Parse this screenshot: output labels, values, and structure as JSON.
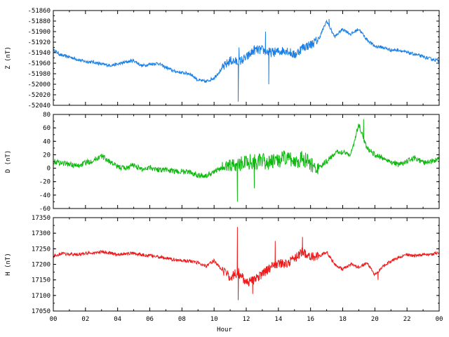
{
  "figure": {
    "xlabel": "Hour",
    "xticks": [
      "00",
      "02",
      "04",
      "06",
      "08",
      "10",
      "12",
      "14",
      "16",
      "18",
      "20",
      "22",
      "00"
    ]
  },
  "chart_data": [
    {
      "type": "line",
      "id": "z",
      "ylabel": "Z (nT)",
      "ylim": [
        -52040,
        -51860
      ],
      "yticks": [
        -51860,
        -51880,
        -51900,
        -51920,
        -51940,
        -51960,
        -51980,
        -52000,
        -52020,
        -52040
      ],
      "xlim": [
        0,
        24
      ],
      "grid": false,
      "color": "#1a7fe6",
      "noise": 3,
      "spikes": [
        [
          11.5,
          -52033
        ],
        [
          11.55,
          -51930
        ],
        [
          13.2,
          -51900
        ],
        [
          13.4,
          -52000
        ],
        [
          17.15,
          -51876
        ]
      ],
      "series": [
        {
          "name": "",
          "x": [
            0,
            0.5,
            1,
            1.5,
            2,
            2.5,
            3,
            3.5,
            4,
            4.5,
            5,
            5.5,
            6,
            6.5,
            7,
            7.5,
            8,
            8.5,
            9,
            9.5,
            10,
            10.5,
            11,
            11.5,
            12,
            12.5,
            13,
            13.5,
            14,
            14.5,
            15,
            15.5,
            16,
            16.5,
            17,
            17.5,
            18,
            18.5,
            19,
            19.5,
            20,
            20.5,
            21,
            21.5,
            22,
            22.5,
            23,
            23.5,
            24
          ],
          "y": [
            -51935,
            -51945,
            -51948,
            -51953,
            -51957,
            -51958,
            -51962,
            -51964,
            -51962,
            -51958,
            -51955,
            -51965,
            -51962,
            -51960,
            -51968,
            -51975,
            -51978,
            -51980,
            -51992,
            -51995,
            -51988,
            -51970,
            -51955,
            -51958,
            -51950,
            -51935,
            -51935,
            -51940,
            -51938,
            -51935,
            -51945,
            -51930,
            -51925,
            -51915,
            -51880,
            -51910,
            -51895,
            -51905,
            -51895,
            -51915,
            -51928,
            -51930,
            -51935,
            -51935,
            -51940,
            -51943,
            -51948,
            -51952,
            -51955
          ]
        }
      ]
    },
    {
      "type": "line",
      "id": "d",
      "ylabel": "D (nT)",
      "ylim": [
        -60,
        80
      ],
      "yticks": [
        80,
        60,
        40,
        20,
        0,
        -20,
        -40,
        -60
      ],
      "xlim": [
        0,
        24
      ],
      "grid": false,
      "color": "#12b812",
      "noise": 4,
      "spikes": [
        [
          11.45,
          -50
        ],
        [
          12.5,
          -30
        ],
        [
          19.3,
          73
        ]
      ],
      "series": [
        {
          "name": "",
          "x": [
            0,
            0.5,
            1,
            1.5,
            2,
            2.5,
            3,
            3.5,
            4,
            4.5,
            5,
            5.5,
            6,
            6.5,
            7,
            7.5,
            8,
            8.5,
            9,
            9.5,
            10,
            10.5,
            11,
            11.5,
            12,
            12.5,
            13,
            13.5,
            14,
            14.5,
            15,
            15.5,
            16,
            16.5,
            17,
            17.5,
            18,
            18.5,
            19,
            19.5,
            20,
            20.5,
            21,
            21.5,
            22,
            22.5,
            23,
            23.5,
            24
          ],
          "y": [
            10,
            8,
            6,
            3,
            8,
            12,
            18,
            10,
            2,
            0,
            5,
            -2,
            2,
            -2,
            -2,
            -5,
            -5,
            -6,
            -10,
            -12,
            -5,
            0,
            5,
            5,
            10,
            10,
            10,
            8,
            12,
            15,
            10,
            15,
            5,
            0,
            10,
            22,
            25,
            20,
            65,
            30,
            20,
            15,
            10,
            5,
            10,
            15,
            8,
            10,
            15
          ]
        }
      ]
    },
    {
      "type": "line",
      "id": "h",
      "ylabel": "H (nT)",
      "ylim": [
        17050,
        17350
      ],
      "yticks": [
        17350,
        17300,
        17250,
        17200,
        17150,
        17100,
        17050
      ],
      "xlim": [
        0,
        24
      ],
      "grid": false,
      "color": "#ee1a1a",
      "noise": 5,
      "spikes": [
        [
          11.45,
          17320
        ],
        [
          11.5,
          17085
        ],
        [
          12.4,
          17105
        ],
        [
          13.8,
          17275
        ],
        [
          15.5,
          17288
        ],
        [
          20.2,
          17150
        ]
      ],
      "series": [
        {
          "name": "",
          "x": [
            0,
            0.5,
            1,
            1.5,
            2,
            2.5,
            3,
            3.5,
            4,
            4.5,
            5,
            5.5,
            6,
            6.5,
            7,
            7.5,
            8,
            8.5,
            9,
            9.5,
            10,
            10.5,
            11,
            11.5,
            12,
            12.5,
            13,
            13.5,
            14,
            14.5,
            15,
            15.5,
            16,
            16.5,
            17,
            17.5,
            18,
            18.5,
            19,
            19.5,
            20,
            20.5,
            21,
            21.5,
            22,
            22.5,
            23,
            23.5,
            24
          ],
          "y": [
            17225,
            17235,
            17232,
            17232,
            17235,
            17236,
            17240,
            17236,
            17232,
            17234,
            17236,
            17230,
            17228,
            17224,
            17220,
            17215,
            17212,
            17210,
            17205,
            17195,
            17212,
            17180,
            17160,
            17175,
            17140,
            17150,
            17170,
            17190,
            17205,
            17200,
            17220,
            17240,
            17225,
            17225,
            17240,
            17200,
            17185,
            17200,
            17190,
            17205,
            17165,
            17195,
            17210,
            17222,
            17230,
            17228,
            17232,
            17232,
            17238
          ]
        }
      ]
    }
  ]
}
